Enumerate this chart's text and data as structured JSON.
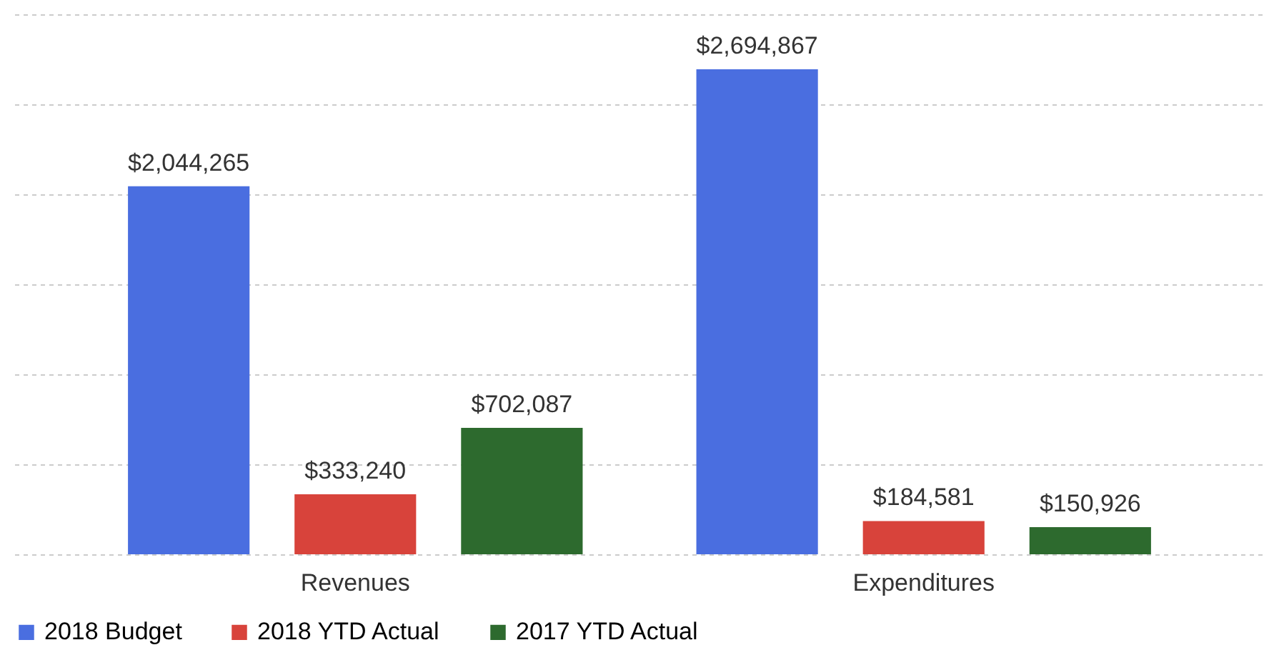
{
  "chart_data": {
    "type": "bar",
    "categories": [
      "Revenues",
      "Expenditures"
    ],
    "series": [
      {
        "name": "2018 Budget",
        "color": "#4a6ee0",
        "values": [
          2044265,
          2694867
        ],
        "value_labels": [
          "$2,044,265",
          "$2,694,867"
        ]
      },
      {
        "name": "2018 YTD Actual",
        "color": "#d8433b",
        "values": [
          333240,
          184581
        ],
        "value_labels": [
          "$333,240",
          "$184,581"
        ]
      },
      {
        "name": "2017 YTD Actual",
        "color": "#2d6a2e",
        "values": [
          702087,
          150926
        ],
        "value_labels": [
          "$702,087",
          "$150,926"
        ]
      }
    ],
    "ylim": [
      0,
      3000000
    ],
    "yticks": [
      0,
      500000,
      1000000,
      1500000,
      2000000,
      2500000,
      3000000
    ],
    "grid": "y",
    "legend": "bottom",
    "tick_labels": "x"
  }
}
